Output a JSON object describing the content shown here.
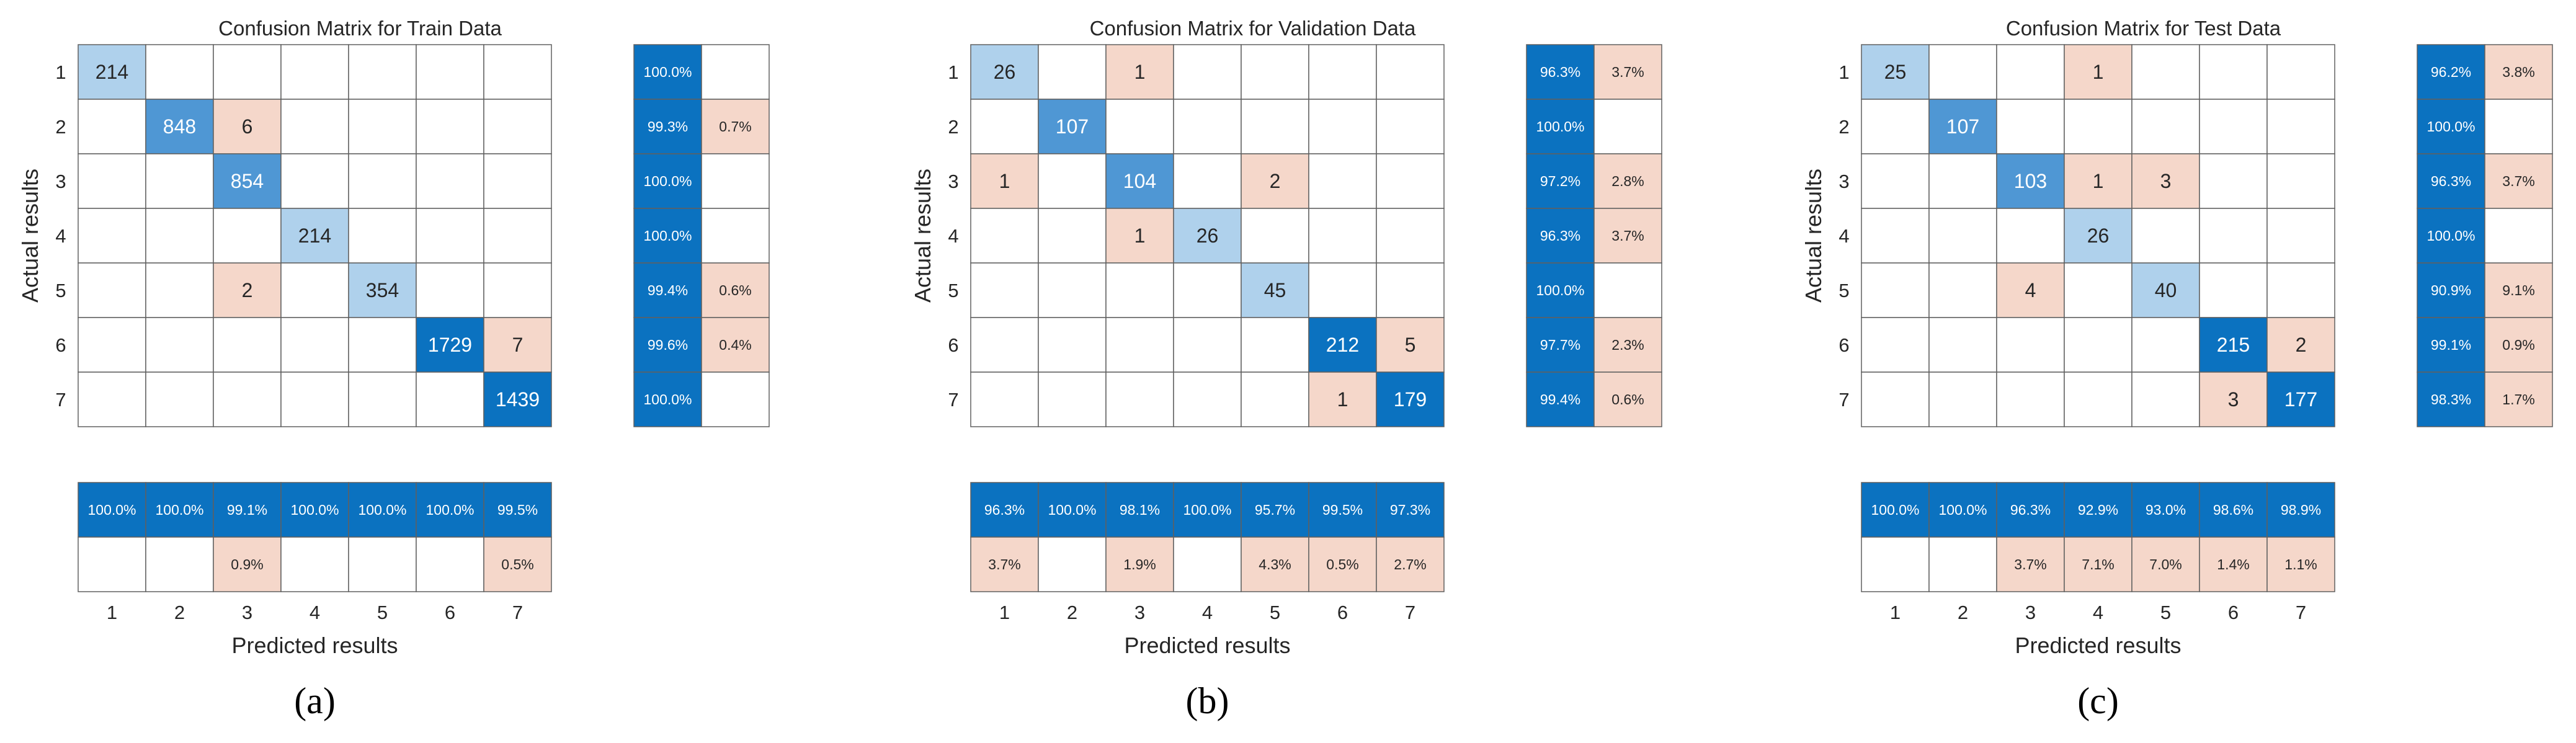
{
  "colors": {
    "dark_blue": "#0b72c0",
    "mid_blue": "#4f97d4",
    "light_blue": "#afd1ec",
    "light_red": "#f5d7ca",
    "grid": "#606060",
    "text_dark": "#262626",
    "text_light": "#ffffff"
  },
  "chart_data": [
    {
      "type": "heatmap",
      "title": "Confusion Matrix for Train Data",
      "xlabel": "Predicted results",
      "ylabel": "Actual results",
      "caption": "(a)",
      "classes": [
        "1",
        "2",
        "3",
        "4",
        "5",
        "6",
        "7"
      ],
      "matrix": [
        [
          214,
          0,
          0,
          0,
          0,
          0,
          0
        ],
        [
          0,
          848,
          6,
          0,
          0,
          0,
          0
        ],
        [
          0,
          0,
          854,
          0,
          0,
          0,
          0
        ],
        [
          0,
          0,
          0,
          214,
          0,
          0,
          0
        ],
        [
          0,
          0,
          2,
          0,
          354,
          0,
          0
        ],
        [
          0,
          0,
          0,
          0,
          0,
          1729,
          7
        ],
        [
          0,
          0,
          0,
          0,
          0,
          0,
          1439
        ]
      ],
      "row_summary": [
        [
          "100.0%",
          ""
        ],
        [
          "99.3%",
          "0.7%"
        ],
        [
          "100.0%",
          ""
        ],
        [
          "100.0%",
          ""
        ],
        [
          "99.4%",
          "0.6%"
        ],
        [
          "99.6%",
          "0.4%"
        ],
        [
          "100.0%",
          ""
        ]
      ],
      "col_summary_correct": [
        "100.0%",
        "100.0%",
        "99.1%",
        "100.0%",
        "100.0%",
        "100.0%",
        "99.5%"
      ],
      "col_summary_error": [
        "",
        "",
        "0.9%",
        "",
        "",
        "",
        "0.5%"
      ]
    },
    {
      "type": "heatmap",
      "title": "Confusion Matrix for Validation Data",
      "xlabel": "Predicted results",
      "ylabel": "Actual results",
      "caption": "(b)",
      "classes": [
        "1",
        "2",
        "3",
        "4",
        "5",
        "6",
        "7"
      ],
      "matrix": [
        [
          26,
          0,
          1,
          0,
          0,
          0,
          0
        ],
        [
          0,
          107,
          0,
          0,
          0,
          0,
          0
        ],
        [
          1,
          0,
          104,
          0,
          2,
          0,
          0
        ],
        [
          0,
          0,
          1,
          26,
          0,
          0,
          0
        ],
        [
          0,
          0,
          0,
          0,
          45,
          0,
          0
        ],
        [
          0,
          0,
          0,
          0,
          0,
          212,
          5
        ],
        [
          0,
          0,
          0,
          0,
          0,
          1,
          179
        ]
      ],
      "row_summary": [
        [
          "96.3%",
          "3.7%"
        ],
        [
          "100.0%",
          ""
        ],
        [
          "97.2%",
          "2.8%"
        ],
        [
          "96.3%",
          "3.7%"
        ],
        [
          "100.0%",
          ""
        ],
        [
          "97.7%",
          "2.3%"
        ],
        [
          "99.4%",
          "0.6%"
        ]
      ],
      "col_summary_correct": [
        "96.3%",
        "100.0%",
        "98.1%",
        "100.0%",
        "95.7%",
        "99.5%",
        "97.3%"
      ],
      "col_summary_error": [
        "3.7%",
        "",
        "1.9%",
        "",
        "4.3%",
        "0.5%",
        "2.7%"
      ]
    },
    {
      "type": "heatmap",
      "title": "Confusion Matrix for Test Data",
      "xlabel": "Predicted results",
      "ylabel": "Actual results",
      "caption": "(c)",
      "classes": [
        "1",
        "2",
        "3",
        "4",
        "5",
        "6",
        "7"
      ],
      "matrix": [
        [
          25,
          0,
          0,
          1,
          0,
          0,
          0
        ],
        [
          0,
          107,
          0,
          0,
          0,
          0,
          0
        ],
        [
          0,
          0,
          103,
          1,
          3,
          0,
          0
        ],
        [
          0,
          0,
          0,
          26,
          0,
          0,
          0
        ],
        [
          0,
          0,
          4,
          0,
          40,
          0,
          0
        ],
        [
          0,
          0,
          0,
          0,
          0,
          215,
          2
        ],
        [
          0,
          0,
          0,
          0,
          0,
          3,
          177
        ]
      ],
      "row_summary": [
        [
          "96.2%",
          "3.8%"
        ],
        [
          "100.0%",
          ""
        ],
        [
          "96.3%",
          "3.7%"
        ],
        [
          "100.0%",
          ""
        ],
        [
          "90.9%",
          "9.1%"
        ],
        [
          "99.1%",
          "0.9%"
        ],
        [
          "98.3%",
          "1.7%"
        ]
      ],
      "col_summary_correct": [
        "100.0%",
        "100.0%",
        "96.3%",
        "92.9%",
        "93.0%",
        "98.6%",
        "98.9%"
      ],
      "col_summary_error": [
        "",
        "",
        "3.7%",
        "7.1%",
        "7.0%",
        "1.4%",
        "1.1%"
      ]
    }
  ]
}
